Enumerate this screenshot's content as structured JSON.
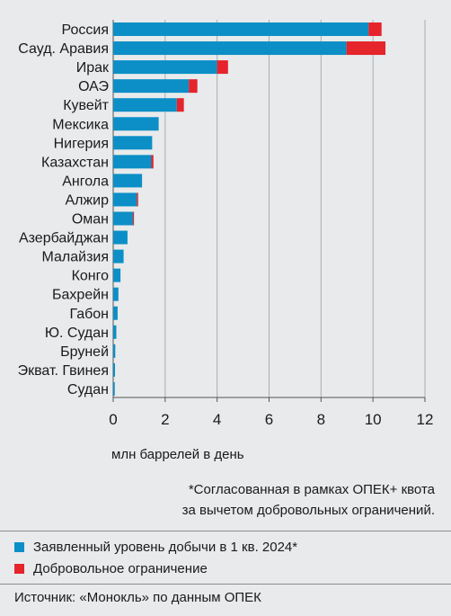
{
  "chart_data": {
    "type": "bar",
    "orientation": "horizontal",
    "stacked": true,
    "categories": [
      "Россия",
      "Сауд. Аравия",
      "Ирак",
      "ОАЭ",
      "Кувейт",
      "Мексика",
      "Нигерия",
      "Казахстан",
      "Ангола",
      "Алжир",
      "Оман",
      "Азербайджан",
      "Малайзия",
      "Конго",
      "Бахрейн",
      "Габон",
      "Ю. Судан",
      "Бруней",
      "Экват. Гвинея",
      "Судан"
    ],
    "series": [
      {
        "name": "Заявленный уровень добычи в 1 кв. 2024*",
        "color": "#0b8fc6",
        "values": [
          9.83,
          8.98,
          4.0,
          2.91,
          2.45,
          1.75,
          1.5,
          1.47,
          1.11,
          0.91,
          0.76,
          0.55,
          0.4,
          0.28,
          0.2,
          0.17,
          0.12,
          0.08,
          0.07,
          0.06
        ]
      },
      {
        "name": "Добровольное ограничение",
        "color": "#e5242b",
        "values": [
          0.5,
          1.5,
          0.42,
          0.33,
          0.27,
          0.0,
          0.0,
          0.08,
          0.0,
          0.05,
          0.04,
          0.0,
          0.0,
          0.0,
          0.0,
          0.0,
          0.0,
          0.0,
          0.0,
          0.0
        ]
      }
    ],
    "xlabel": "млн баррелей в день",
    "xlim": [
      0,
      12
    ],
    "xticks": [
      "0",
      "2",
      "4",
      "6",
      "8",
      "10",
      "12"
    ],
    "grid": true,
    "legend_placement": "bottom"
  },
  "footnote": [
    "*Согласованная в рамках ОПЕК+ квота",
    "за вычетом добровольных ограничений."
  ],
  "source": "Источник: «Монокль» по данным ОПЕК"
}
